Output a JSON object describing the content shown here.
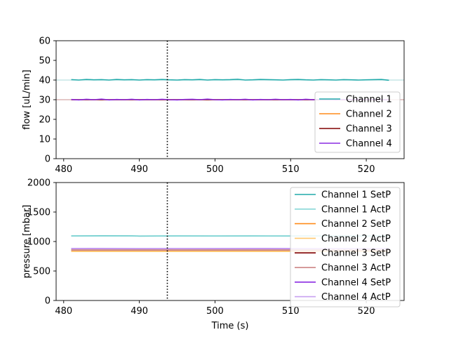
{
  "chart_data": [
    {
      "type": "line",
      "xlabel": "",
      "ylabel": "flow [uL/min]",
      "xlim": [
        479,
        525
      ],
      "ylim": [
        0,
        60
      ],
      "xticks": [
        480,
        490,
        500,
        510,
        520
      ],
      "yticks": [
        0,
        10,
        20,
        30,
        40,
        50,
        60
      ],
      "vline_x": 493.7,
      "hlines": [
        {
          "y": 40,
          "color": "#a8d8d8"
        },
        {
          "y": 30,
          "color": "#c89090"
        }
      ],
      "legend_position": "bottom-right",
      "series": [
        {
          "name": "Channel 1",
          "color": "#20aaaa",
          "x": [
            481,
            482,
            483,
            484,
            485,
            486,
            487,
            488,
            489,
            490,
            491,
            492,
            493,
            494,
            495,
            496,
            497,
            498,
            499,
            500,
            501,
            502,
            503,
            504,
            505,
            506,
            507,
            508,
            509,
            510,
            511,
            512,
            513,
            514,
            515,
            516,
            517,
            518,
            519,
            520,
            521,
            522,
            523
          ],
          "y": [
            40.2,
            40.0,
            40.3,
            40.1,
            40.2,
            40.0,
            40.3,
            40.1,
            40.2,
            40.0,
            40.2,
            40.1,
            40.3,
            40.1,
            40.0,
            40.2,
            40.1,
            40.3,
            40.0,
            40.2,
            40.1,
            40.2,
            40.4,
            40.0,
            40.1,
            40.3,
            40.2,
            40.1,
            40.0,
            40.2,
            40.3,
            40.1,
            40.0,
            40.2,
            40.1,
            40.0,
            40.2,
            40.1,
            40.0,
            40.1,
            40.2,
            40.3,
            39.9
          ]
        },
        {
          "name": "Channel 2",
          "color": "#ff8c1a",
          "x": [
            481,
            523
          ],
          "y": [
            30.0,
            30.0
          ]
        },
        {
          "name": "Channel 3",
          "color": "#800000",
          "x": [
            481,
            523
          ],
          "y": [
            30.0,
            30.0
          ]
        },
        {
          "name": "Channel 4",
          "color": "#8a2be2",
          "x": [
            481,
            482,
            483,
            484,
            485,
            486,
            487,
            488,
            489,
            490,
            491,
            492,
            493,
            494,
            495,
            496,
            497,
            498,
            499,
            500,
            501,
            502,
            503,
            504,
            505,
            506,
            507,
            508,
            509,
            510,
            511,
            512,
            513,
            514,
            515,
            516,
            517,
            518,
            519,
            520,
            521,
            522,
            523
          ],
          "y": [
            30.1,
            29.9,
            30.2,
            30.0,
            30.3,
            29.9,
            30.1,
            30.0,
            30.2,
            29.9,
            30.1,
            30.0,
            30.2,
            30.0,
            29.9,
            30.1,
            30.2,
            30.0,
            30.3,
            30.0,
            29.9,
            30.1,
            30.0,
            30.2,
            29.9,
            30.1,
            30.0,
            30.2,
            30.0,
            30.1,
            29.9,
            30.2,
            30.0,
            30.1,
            30.0,
            29.9,
            30.1,
            30.0,
            30.2,
            30.0,
            30.1,
            30.0,
            29.9
          ]
        }
      ]
    },
    {
      "type": "line",
      "xlabel": "Time (s)",
      "ylabel": "pressure [mbar]",
      "xlim": [
        479,
        525
      ],
      "ylim": [
        0,
        2000
      ],
      "xticks": [
        480,
        490,
        500,
        510,
        520
      ],
      "yticks": [
        0,
        500,
        1000,
        1500,
        2000
      ],
      "vline_x": 493.7,
      "legend_position": "top-right",
      "series": [
        {
          "name": "Channel 1 SetP",
          "color": "#20aaaa",
          "x": [
            481,
            485,
            489,
            490,
            495,
            500,
            505,
            510,
            515,
            520,
            523
          ],
          "y": [
            1095,
            1097,
            1096,
            1092,
            1094,
            1093,
            1094,
            1093,
            1094,
            1093,
            1094
          ]
        },
        {
          "name": "Channel 1 ActP",
          "color": "#88d8d8",
          "x": [
            481,
            523
          ],
          "y": [
            1095,
            1094
          ]
        },
        {
          "name": "Channel 2 SetP",
          "color": "#ff8c1a",
          "x": [
            481,
            523
          ],
          "y": [
            832,
            832
          ]
        },
        {
          "name": "Channel 2 ActP",
          "color": "#ffc870",
          "x": [
            481,
            523
          ],
          "y": [
            832,
            832
          ]
        },
        {
          "name": "Channel 3 SetP",
          "color": "#800000",
          "x": [
            481,
            523
          ],
          "y": [
            855,
            855
          ]
        },
        {
          "name": "Channel 3 ActP",
          "color": "#c87a7a",
          "x": [
            481,
            523
          ],
          "y": [
            855,
            855
          ]
        },
        {
          "name": "Channel 4 SetP",
          "color": "#8a2be2",
          "x": [
            481,
            485,
            490,
            495,
            500,
            505,
            510,
            515,
            520,
            523
          ],
          "y": [
            880,
            882,
            879,
            881,
            880,
            882,
            880,
            881,
            880,
            880
          ]
        },
        {
          "name": "Channel 4 ActP",
          "color": "#c8a0f0",
          "x": [
            481,
            523
          ],
          "y": [
            880,
            880
          ]
        }
      ]
    }
  ]
}
